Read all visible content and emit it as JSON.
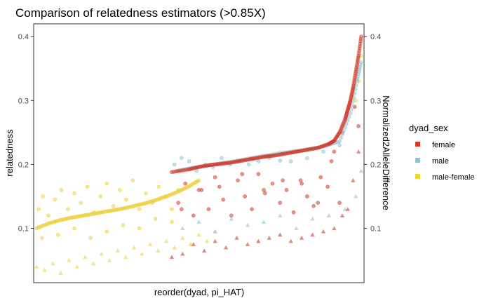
{
  "chart_data": {
    "type": "scatter",
    "title": "Comparison of relatedness estimators (>0.85X)",
    "xlabel": "reorder(dyad, pi_HAT)",
    "ylabel": "relatedness",
    "y2label": "Normalized2AlleleDifference",
    "ylim": [
      0.015,
      0.42
    ],
    "yticks": [
      "0.1",
      "0.2",
      "0.3",
      "0.4"
    ],
    "y2ticks": [
      "0.1",
      "0.2",
      "0.3",
      "0.4"
    ],
    "grid": false,
    "legend_position": "right",
    "legend_title": "dyad_sex",
    "series": [
      {
        "name": "female",
        "color": "#d03a2a"
      },
      {
        "name": "male",
        "color": "#8fc3d0"
      },
      {
        "name": "male-female",
        "color": "#ecd03c"
      }
    ],
    "x_count": 600,
    "female": {
      "pi_hat_x": [
        250,
        280,
        300,
        320,
        340,
        360,
        380,
        400,
        420,
        440,
        460,
        480,
        500,
        520,
        540,
        550,
        560,
        570,
        575,
        580,
        585,
        590,
        595,
        600
      ],
      "pi_hat_y": [
        0.188,
        0.192,
        0.196,
        0.199,
        0.201,
        0.203,
        0.206,
        0.209,
        0.212,
        0.214,
        0.217,
        0.22,
        0.223,
        0.226,
        0.232,
        0.237,
        0.25,
        0.27,
        0.285,
        0.3,
        0.32,
        0.345,
        0.37,
        0.4
      ],
      "scatter_x": [
        262,
        275,
        290,
        305,
        318,
        330,
        345,
        360,
        372,
        385,
        398,
        410,
        422,
        436,
        450,
        462,
        475,
        488,
        500,
        512,
        525,
        538,
        550,
        560,
        268,
        300,
        338,
        380,
        420,
        455,
        490,
        520,
        545,
        565,
        588,
        595
      ],
      "scatter_y": [
        0.14,
        0.17,
        0.12,
        0.16,
        0.13,
        0.18,
        0.145,
        0.12,
        0.175,
        0.15,
        0.13,
        0.185,
        0.155,
        0.17,
        0.14,
        0.16,
        0.125,
        0.175,
        0.15,
        0.135,
        0.18,
        0.165,
        0.22,
        0.14,
        0.13,
        0.16,
        0.165,
        0.185,
        0.16,
        0.175,
        0.17,
        0.14,
        0.205,
        0.25,
        0.29,
        0.26
      ],
      "triangle_x": [
        250,
        270,
        290,
        310,
        330,
        350,
        370,
        390,
        410,
        430,
        450,
        470,
        490,
        510,
        530,
        550,
        565,
        575,
        585,
        595
      ],
      "triangle_y": [
        0.055,
        0.06,
        0.075,
        0.065,
        0.08,
        0.07,
        0.085,
        0.075,
        0.08,
        0.085,
        0.09,
        0.08,
        0.085,
        0.09,
        0.095,
        0.1,
        0.12,
        0.13,
        0.175,
        0.22
      ]
    },
    "male": {
      "pi_hat_x": [
        260,
        290,
        330,
        370,
        410,
        450,
        490,
        530,
        560,
        580,
        592,
        600
      ],
      "pi_hat_y": [
        0.19,
        0.195,
        0.2,
        0.206,
        0.212,
        0.218,
        0.222,
        0.228,
        0.236,
        0.28,
        0.33,
        0.36
      ],
      "scatter_x": [
        255,
        268,
        282,
        296,
        312,
        326,
        342,
        358,
        374,
        392,
        410,
        430,
        450,
        470,
        500,
        530,
        560,
        585
      ],
      "scatter_y": [
        0.2,
        0.21,
        0.205,
        0.19,
        0.2,
        0.196,
        0.21,
        0.2,
        0.205,
        0.2,
        0.205,
        0.21,
        0.206,
        0.205,
        0.21,
        0.22,
        0.23,
        0.32
      ],
      "triangle_x": [
        270,
        300,
        330,
        360,
        390,
        420,
        450,
        480,
        510,
        540,
        570,
        590,
        600
      ],
      "triangle_y": [
        0.1,
        0.11,
        0.095,
        0.115,
        0.105,
        0.11,
        0.12,
        0.1,
        0.115,
        0.12,
        0.13,
        0.15,
        0.19
      ]
    },
    "male_female": {
      "pi_hat_x": [
        0,
        20,
        40,
        60,
        80,
        100,
        120,
        140,
        160,
        180,
        200,
        220,
        240,
        260,
        280,
        300
      ],
      "pi_hat_y": [
        0.1,
        0.107,
        0.112,
        0.116,
        0.119,
        0.122,
        0.125,
        0.128,
        0.131,
        0.135,
        0.139,
        0.144,
        0.15,
        0.157,
        0.165,
        0.175
      ],
      "scatter_x": [
        4,
        12,
        22,
        34,
        46,
        58,
        70,
        82,
        94,
        106,
        118,
        130,
        142,
        154,
        166,
        178,
        190,
        202,
        214,
        226,
        238,
        250,
        262,
        10,
        40,
        70,
        100,
        130,
        160,
        190,
        220,
        250,
        590,
        595,
        600
      ],
      "scatter_y": [
        0.13,
        0.15,
        0.12,
        0.145,
        0.16,
        0.13,
        0.155,
        0.14,
        0.165,
        0.125,
        0.15,
        0.17,
        0.135,
        0.16,
        0.145,
        0.175,
        0.13,
        0.155,
        0.14,
        0.165,
        0.15,
        0.13,
        0.16,
        0.085,
        0.09,
        0.1,
        0.085,
        0.095,
        0.105,
        0.1,
        0.115,
        0.11,
        0.3,
        0.33,
        0.37
      ],
      "triangle_x": [
        0,
        15,
        30,
        45,
        60,
        75,
        90,
        105,
        120,
        135,
        150,
        165,
        180,
        195,
        210,
        225,
        240,
        255,
        270,
        285,
        300,
        315,
        330
      ],
      "triangle_y": [
        0.04,
        0.035,
        0.045,
        0.03,
        0.05,
        0.04,
        0.055,
        0.045,
        0.06,
        0.05,
        0.065,
        0.055,
        0.07,
        0.06,
        0.075,
        0.065,
        0.08,
        0.07,
        0.085,
        0.075,
        0.09,
        0.08,
        0.095
      ]
    }
  }
}
